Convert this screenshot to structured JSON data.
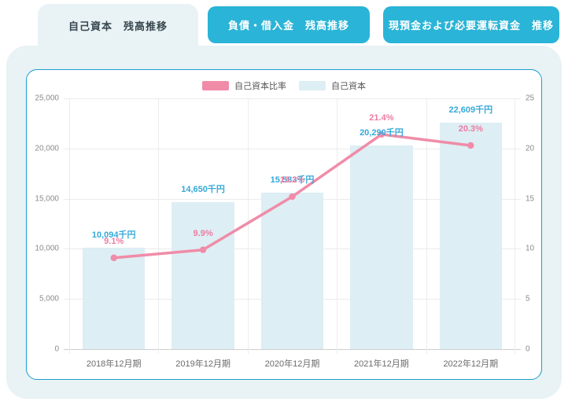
{
  "tabs": [
    {
      "label": "自己資本　残高推移",
      "active": true
    },
    {
      "label": "負債・借入金　残高推移",
      "active": false
    },
    {
      "label": "現預金および必要運転資金　推移",
      "active": false
    }
  ],
  "legend": [
    {
      "label": "自己資本比率",
      "color": "#f08ca8"
    },
    {
      "label": "自己資本",
      "color": "#ddeef4"
    }
  ],
  "colors": {
    "tab_active_bg": "#e9f2f5",
    "tab_inactive_bg": "#2ab4d7",
    "card_border": "#1c9ece",
    "bar_fill": "#ddeef4",
    "bar_value_label": "#35a9da",
    "ratio_line": "#f08ca8",
    "ratio_value_label": "#ee7ca2"
  },
  "chart_data": {
    "type": "bar+line combo",
    "categories": [
      "2018年12月期",
      "2019年12月期",
      "2020年12月期",
      "2021年12月期",
      "2022年12月期"
    ],
    "series": [
      {
        "name": "自己資本",
        "type": "bar",
        "axis": "left",
        "values": [
          10094,
          14650,
          15583,
          20290,
          22609
        ],
        "labels": [
          "10,094千円",
          "14,650千円",
          "15,583千円",
          "20,290千円",
          "22,609千円"
        ],
        "color": "#ddeef4"
      },
      {
        "name": "自己資本比率",
        "type": "line",
        "axis": "right",
        "values": [
          9.1,
          9.9,
          15.2,
          21.4,
          20.3
        ],
        "labels": [
          "9.1%",
          "9.9%",
          "15.2%",
          "21.4%",
          "20.3%"
        ],
        "color": "#f08ca8"
      }
    ],
    "left_axis": {
      "min": 0,
      "max": 25000,
      "ticks": [
        "0",
        "5,000",
        "10,000",
        "15,000",
        "20,000",
        "25,000"
      ]
    },
    "right_axis": {
      "min": 0,
      "max": 25,
      "ticks": [
        "0",
        "5",
        "10",
        "15",
        "20",
        "25"
      ]
    },
    "grid": true,
    "legend_position": "top-center"
  }
}
